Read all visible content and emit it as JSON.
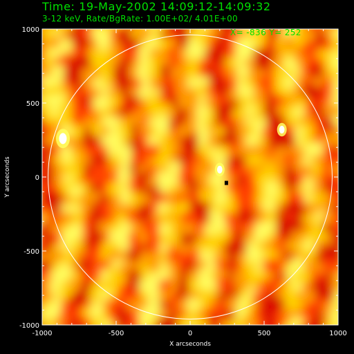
{
  "header": {
    "time_line": "Time: 19-May-2002 14:09:12-14:09:32",
    "info_line": "3-12 keV, Rate/BgRate:  1.00E+02/  4.01E+00",
    "cursor_readout": "X= -836 Y=  252"
  },
  "chart_data": {
    "type": "heatmap",
    "title": "",
    "xlabel": "X arcseconds",
    "ylabel": "Y arcseconds",
    "xlim": [
      -1000,
      1000
    ],
    "ylim": [
      -1000,
      1000
    ],
    "x_ticks": [
      -1000,
      -500,
      0,
      500,
      1000
    ],
    "y_ticks": [
      -1000,
      -500,
      0,
      500,
      1000
    ],
    "x_tick_labels": [
      "-1000",
      "-500",
      "0",
      "500",
      "1000"
    ],
    "y_tick_labels": [
      "-1000",
      "-500",
      "0",
      "500",
      "1000"
    ],
    "solar_limb": {
      "center": [
        0,
        0
      ],
      "radius_arcsec": 960,
      "color": "#ffffff"
    },
    "colormap": [
      "#d80000",
      "#ff4000",
      "#ff9a00",
      "#ffd400",
      "#ffff60",
      "#ffffff"
    ],
    "bright_sources": [
      {
        "x": -860,
        "y": 260,
        "intensity": "max"
      },
      {
        "x": 200,
        "y": 50,
        "intensity": "high"
      },
      {
        "x": 620,
        "y": 320,
        "intensity": "high"
      }
    ],
    "dark_marker": {
      "x": 245,
      "y": -40,
      "color": "#000000"
    },
    "grid": false,
    "legend": "none"
  }
}
